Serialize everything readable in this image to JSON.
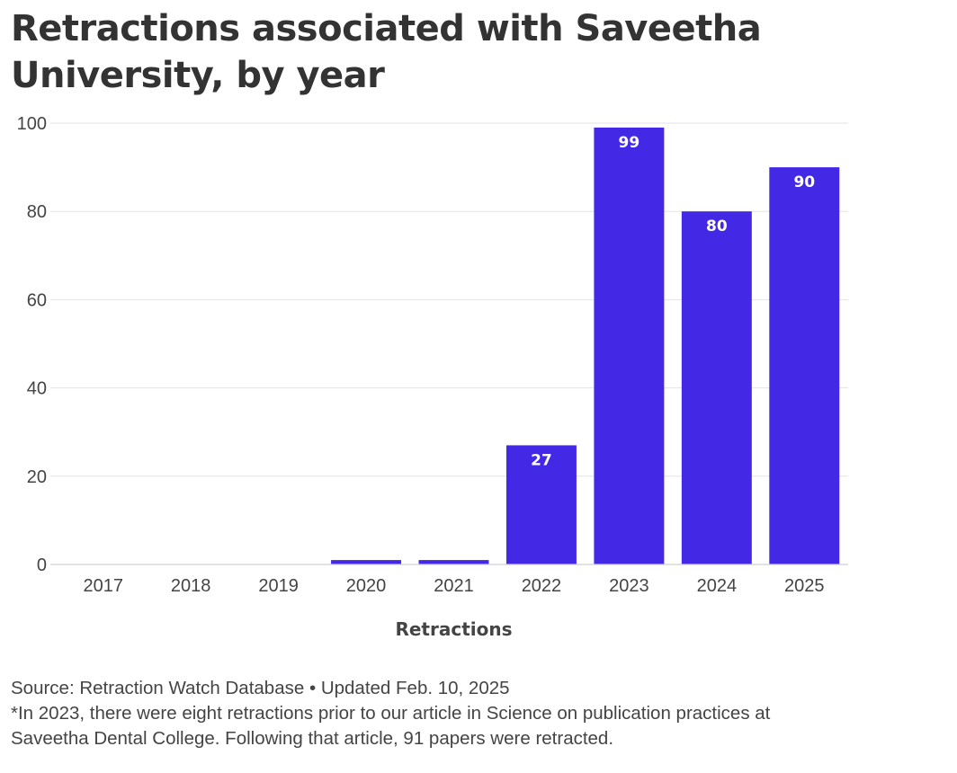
{
  "chart_data": {
    "type": "bar",
    "title_line1": "Retractions associated with Saveetha",
    "title_line2": "University, by year",
    "categories": [
      "2017",
      "2018",
      "2019",
      "2020",
      "2021",
      "2022",
      "2023",
      "2024",
      "2025"
    ],
    "values": [
      0,
      0,
      0,
      1,
      1,
      27,
      99,
      80,
      90
    ],
    "data_labels": [
      "",
      "",
      "",
      "",
      "",
      "27",
      "99",
      "80",
      "90"
    ],
    "xlabel": "Retractions",
    "ylabel": "",
    "ylim": [
      0,
      100
    ],
    "yticks": [
      0,
      20,
      40,
      60,
      80,
      100
    ],
    "grid": true,
    "bar_color": "#4329e6"
  },
  "footer": {
    "source": "Source: Retraction Watch Database • Updated Feb. 10, 2025",
    "note_line1": "*In 2023, there were eight retractions prior to our article in Science on publication practices at",
    "note_line2": "Saveetha Dental College. Following that article, 91 papers were retracted."
  }
}
